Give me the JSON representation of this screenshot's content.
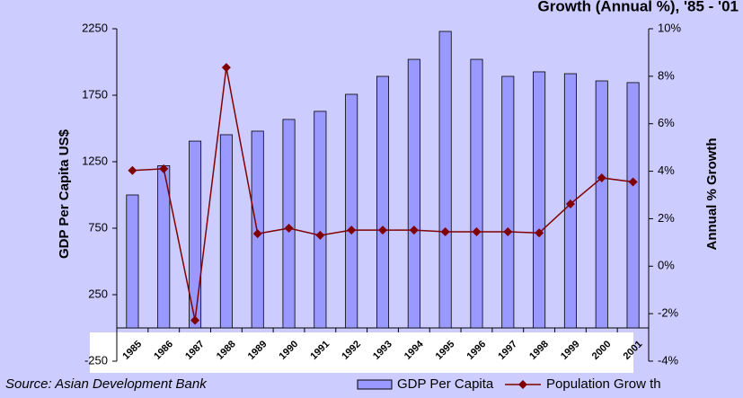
{
  "chart_data": {
    "type": "bar-line",
    "title": "Growth (Annual %), '85 - '01",
    "source": "Source: Asian Development Bank",
    "y_label": "GDP Per Capita US$",
    "y2_label": "Annual % Growth",
    "categories": [
      "1985",
      "1986",
      "1987",
      "1988",
      "1989",
      "1990",
      "1991",
      "1992",
      "1993",
      "1994",
      "1995",
      "1996",
      "1997",
      "1998",
      "1999",
      "2000",
      "2001"
    ],
    "series": [
      {
        "name": "GDP Per Capita",
        "type": "bar",
        "color": "#9999ff",
        "values": [
          1000,
          1220,
          1405,
          1453,
          1480,
          1568,
          1629,
          1757,
          1892,
          2020,
          2230,
          2020,
          1892,
          1926,
          1912,
          1858,
          1845
        ]
      },
      {
        "name": "Population Grow th",
        "type": "line",
        "axis": "y2",
        "color": "#800000",
        "values": [
          4.03,
          4.1,
          -2.28,
          8.37,
          1.37,
          1.6,
          1.3,
          1.52,
          1.52,
          1.52,
          1.45,
          1.45,
          1.45,
          1.4,
          2.62,
          3.72,
          3.55
        ]
      }
    ],
    "ylim": [
      -250,
      2250
    ],
    "yticks": [
      -250,
      250,
      750,
      1250,
      1750,
      2250
    ],
    "y2lim": [
      -4,
      10
    ],
    "y2ticks": [
      {
        "value": -4,
        "label": "-4%"
      },
      {
        "value": -2,
        "label": "-2%"
      },
      {
        "value": 0,
        "label": "0%"
      },
      {
        "value": 2,
        "label": "2%"
      },
      {
        "value": 4,
        "label": "4%"
      },
      {
        "value": 6,
        "label": "6%"
      },
      {
        "value": 8,
        "label": "8%"
      },
      {
        "value": 10,
        "label": "10%"
      }
    ]
  }
}
